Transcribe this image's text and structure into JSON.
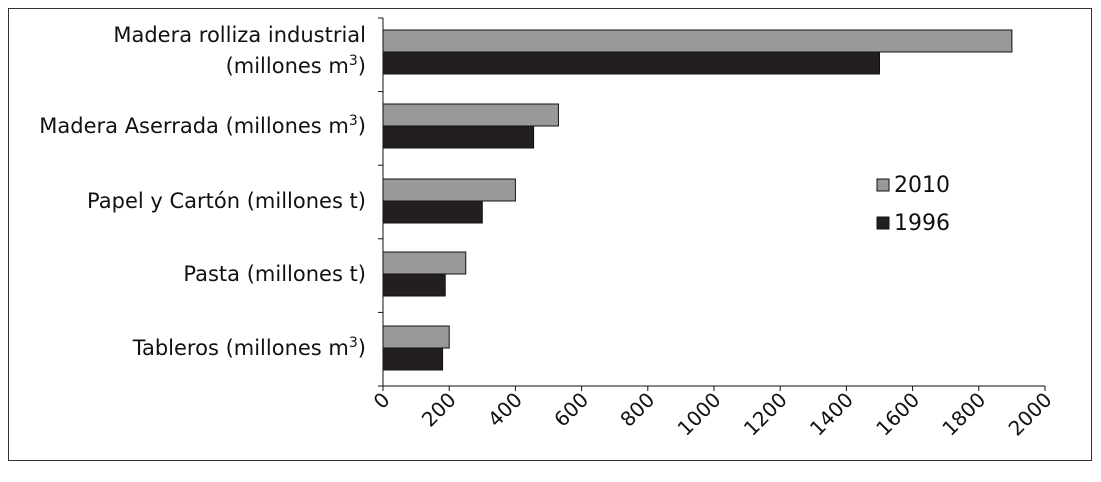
{
  "chart_data": {
    "type": "bar",
    "orientation": "horizontal",
    "categories": [
      {
        "label": "Madera rolliza industrial",
        "label_line2": "(millones m",
        "sup": "3",
        "after_sup": ")"
      },
      {
        "label": "Madera Aserrada (millones m",
        "sup": "3",
        "after_sup": ")"
      },
      {
        "label": "Papel y Cartón (millones t)"
      },
      {
        "label": "Pasta (millones t)"
      },
      {
        "label": "Tableros (millones m",
        "sup": "3",
        "after_sup": ")"
      }
    ],
    "series": [
      {
        "name": "2010",
        "color": "#999999",
        "values": [
          1900,
          530,
          400,
          250,
          200
        ]
      },
      {
        "name": "1996",
        "color": "#231f20",
        "values": [
          1500,
          455,
          300,
          188,
          180
        ]
      }
    ],
    "xlim": [
      0,
      2000
    ],
    "x_ticks": [
      "0",
      "200",
      "400",
      "600",
      "800",
      "1000",
      "1200",
      "1400",
      "1600",
      "1800",
      "2000"
    ],
    "grid": false,
    "legend_position": "right"
  }
}
